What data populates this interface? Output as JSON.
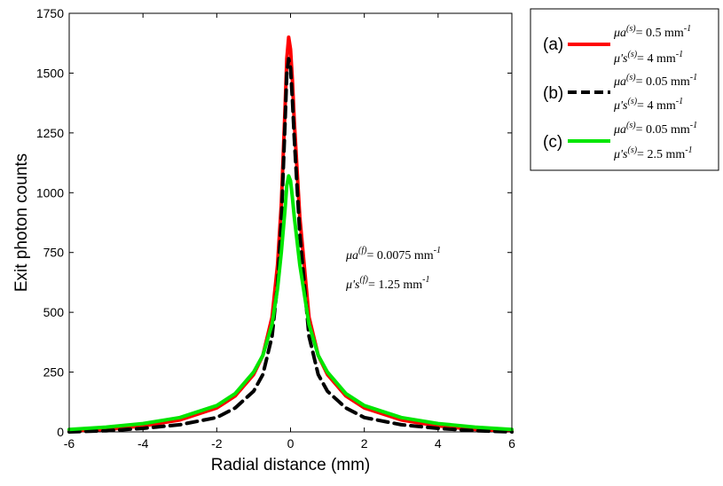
{
  "chart_data": {
    "type": "line",
    "xlabel": "Radial distance (mm)",
    "ylabel": "Exit photon counts",
    "xlim": [
      -6,
      6
    ],
    "ylim": [
      0,
      1750
    ],
    "xticks": [
      -6,
      -4,
      -2,
      0,
      2,
      4,
      6
    ],
    "yticks": [
      0,
      250,
      500,
      750,
      1000,
      1250,
      1500,
      1750
    ],
    "grid": false,
    "legend_position": "outside-right",
    "annotation": {
      "mu_a_symbol": "μa",
      "mu_a_sup": "(f)",
      "mu_a_value": "= 0.0075 mm",
      "mu_s_symbol": "μ's",
      "mu_s_sup": "(f)",
      "mu_s_value": "= 1.25 mm",
      "unit_exp": "-1"
    },
    "series": [
      {
        "code": "(a)",
        "color": "#ff0000",
        "dash": "solid",
        "mu_a_symbol": "μa",
        "mu_a_sup": "(s)",
        "mu_a_value": "= 0.5 mm",
        "mu_s_symbol": "μ's",
        "mu_s_sup": "(s)",
        "mu_s_value": "= 4 mm",
        "unit_exp": "-1",
        "x": [
          -6,
          -5,
          -4,
          -3,
          -2,
          -1.5,
          -1,
          -0.75,
          -0.5,
          -0.35,
          -0.25,
          -0.15,
          -0.1,
          -0.05,
          0,
          0.05,
          0.1,
          0.25,
          0.5,
          0.75,
          1,
          1.5,
          2,
          3,
          4,
          5,
          6
        ],
        "y": [
          5,
          10,
          25,
          50,
          100,
          150,
          240,
          320,
          480,
          700,
          950,
          1350,
          1560,
          1650,
          1600,
          1470,
          1300,
          900,
          480,
          320,
          240,
          150,
          100,
          50,
          25,
          10,
          5
        ]
      },
      {
        "code": "(b)",
        "color": "#000000",
        "dash": "dashed",
        "mu_a_symbol": "μa",
        "mu_a_sup": "(s)",
        "mu_a_value": "= 0.05 mm",
        "mu_s_symbol": "μ's",
        "mu_s_sup": "(s)",
        "mu_s_value": "= 4 mm",
        "unit_exp": "-1",
        "x": [
          -6,
          -5,
          -4,
          -3,
          -2,
          -1.5,
          -1,
          -0.75,
          -0.5,
          -0.35,
          -0.25,
          -0.15,
          -0.1,
          -0.05,
          0,
          0.05,
          0.1,
          0.25,
          0.5,
          0.75,
          1,
          1.5,
          2,
          3,
          4,
          5,
          6
        ],
        "y": [
          0,
          5,
          15,
          30,
          60,
          100,
          170,
          240,
          400,
          620,
          880,
          1290,
          1500,
          1560,
          1520,
          1390,
          1230,
          830,
          400,
          240,
          170,
          100,
          60,
          30,
          15,
          5,
          0
        ]
      },
      {
        "code": "(c)",
        "color": "#00e600",
        "dash": "solid",
        "mu_a_symbol": "μa",
        "mu_a_sup": "(s)",
        "mu_a_value": "= 0.05 mm",
        "mu_s_symbol": "μ's",
        "mu_s_sup": "(s)",
        "mu_s_value": "= 2.5 mm",
        "unit_exp": "-1",
        "x": [
          -6,
          -5,
          -4,
          -3,
          -2,
          -1.5,
          -1,
          -0.75,
          -0.5,
          -0.35,
          -0.25,
          -0.15,
          -0.1,
          -0.05,
          0,
          0.05,
          0.1,
          0.25,
          0.5,
          0.75,
          1,
          1.5,
          2,
          3,
          4,
          5,
          6
        ],
        "y": [
          10,
          20,
          35,
          60,
          110,
          160,
          250,
          320,
          450,
          600,
          750,
          930,
          1030,
          1070,
          1050,
          980,
          900,
          700,
          450,
          320,
          250,
          160,
          110,
          60,
          35,
          20,
          10
        ]
      }
    ]
  }
}
